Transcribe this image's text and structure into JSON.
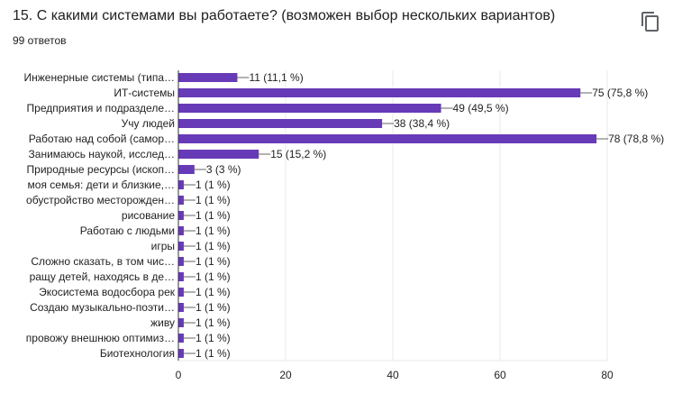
{
  "question": {
    "title": "15. С какими системами вы работаете? (возможен выбор нескольких вариантов)",
    "responses": "99 ответов",
    "copy_icon": "copy-icon"
  },
  "chart_data": {
    "type": "bar",
    "orientation": "horizontal",
    "categories": [
      "Инженерные системы (типа…",
      "ИТ-системы",
      "Предприятия и подразделе…",
      "Учу людей",
      "Работаю над собой (самор…",
      "Занимаюсь наукой, исслед…",
      "Природные ресурсы (ископ…",
      "моя семья: дети и близкие,…",
      "обустройство месторожден…",
      "рисование",
      "Работаю с людьми",
      "игры",
      "Сложно сказать, в том чис…",
      "ращу детей, находясь в де…",
      "Экосистема водосбора рек",
      "Создаю музыкально-поэти…",
      "живу",
      "провожу внешнюю оптимиз…",
      "Биотехнология"
    ],
    "values": [
      11,
      75,
      49,
      38,
      78,
      15,
      3,
      1,
      1,
      1,
      1,
      1,
      1,
      1,
      1,
      1,
      1,
      1,
      1
    ],
    "data_labels": [
      "11 (11,1 %)",
      "75 (75,8 %)",
      "49 (49,5 %)",
      "38 (38,4 %)",
      "78 (78,8 %)",
      "15 (15,2 %)",
      "3 (3 %)",
      "1 (1 %)",
      "1 (1 %)",
      "1 (1 %)",
      "1 (1 %)",
      "1 (1 %)",
      "1 (1 %)",
      "1 (1 %)",
      "1 (1 %)",
      "1 (1 %)",
      "1 (1 %)",
      "1 (1 %)",
      "1 (1 %)"
    ],
    "xlim": [
      0,
      80
    ],
    "xticks": [
      "0",
      "20",
      "40",
      "60",
      "80"
    ],
    "grid": true,
    "bar_color": "#673ab7"
  }
}
